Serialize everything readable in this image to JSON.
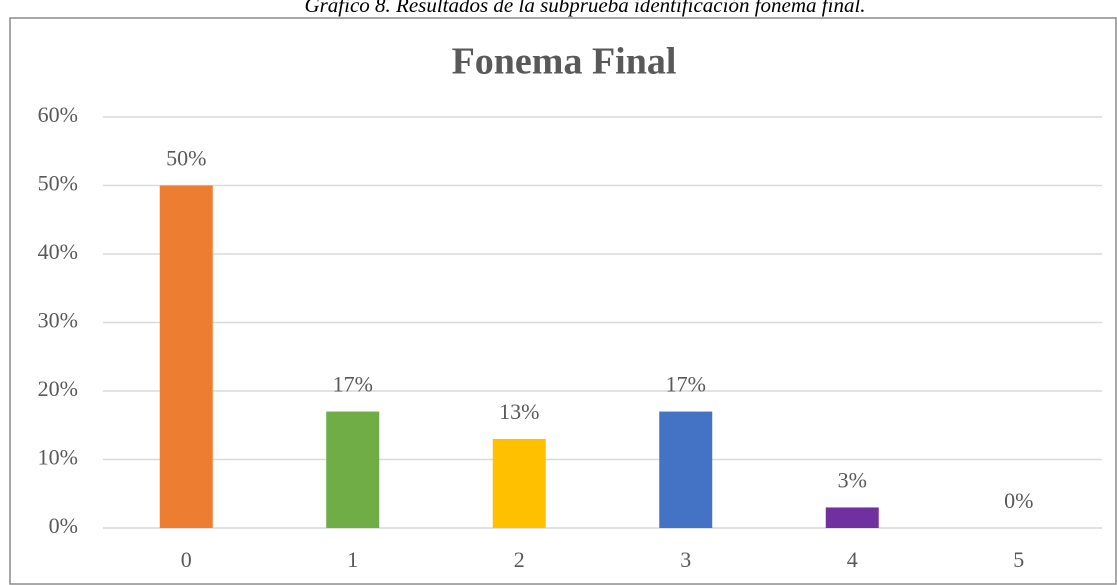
{
  "caption": "Gráfico 8. Resultados de la subprueba identificación fonema final.",
  "chart_data": {
    "type": "bar",
    "title": "Fonema Final",
    "categories": [
      "0",
      "1",
      "2",
      "3",
      "4",
      "5"
    ],
    "values": [
      50,
      17,
      13,
      17,
      3,
      0
    ],
    "value_labels": [
      "50%",
      "17%",
      "13%",
      "17%",
      "3%",
      "0%"
    ],
    "colors": [
      "#ed7d31",
      "#70ad47",
      "#ffc000",
      "#4472c4",
      "#7030a0",
      "#264478"
    ],
    "ylim": [
      0,
      60
    ],
    "yticks": [
      {
        "value": 0,
        "label": "0%"
      },
      {
        "value": 10,
        "label": "10%"
      },
      {
        "value": 20,
        "label": "20%"
      },
      {
        "value": 30,
        "label": "30%"
      },
      {
        "value": 40,
        "label": "40%"
      },
      {
        "value": 50,
        "label": "50%"
      },
      {
        "value": 60,
        "label": "60%"
      }
    ],
    "grid": true
  }
}
